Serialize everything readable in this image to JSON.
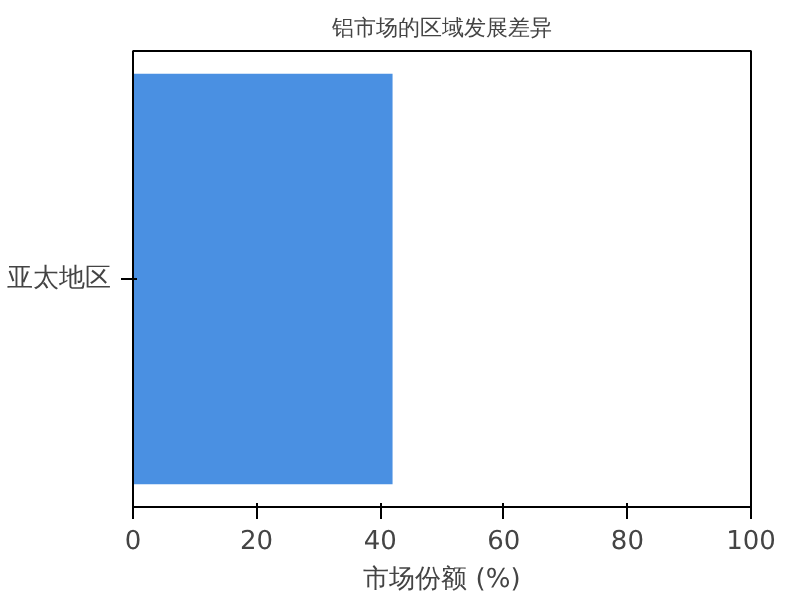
{
  "chart_data": {
    "type": "bar",
    "orientation": "horizontal",
    "title": "铝市场的区域发展差异",
    "xlabel": "市场份额 (%)",
    "categories": [
      "亚太地区"
    ],
    "values": [
      42
    ],
    "color": "#4a90e2",
    "xlim": [
      0,
      100
    ],
    "xticks": [
      0,
      20,
      40,
      60,
      80,
      100
    ],
    "grid": false
  }
}
